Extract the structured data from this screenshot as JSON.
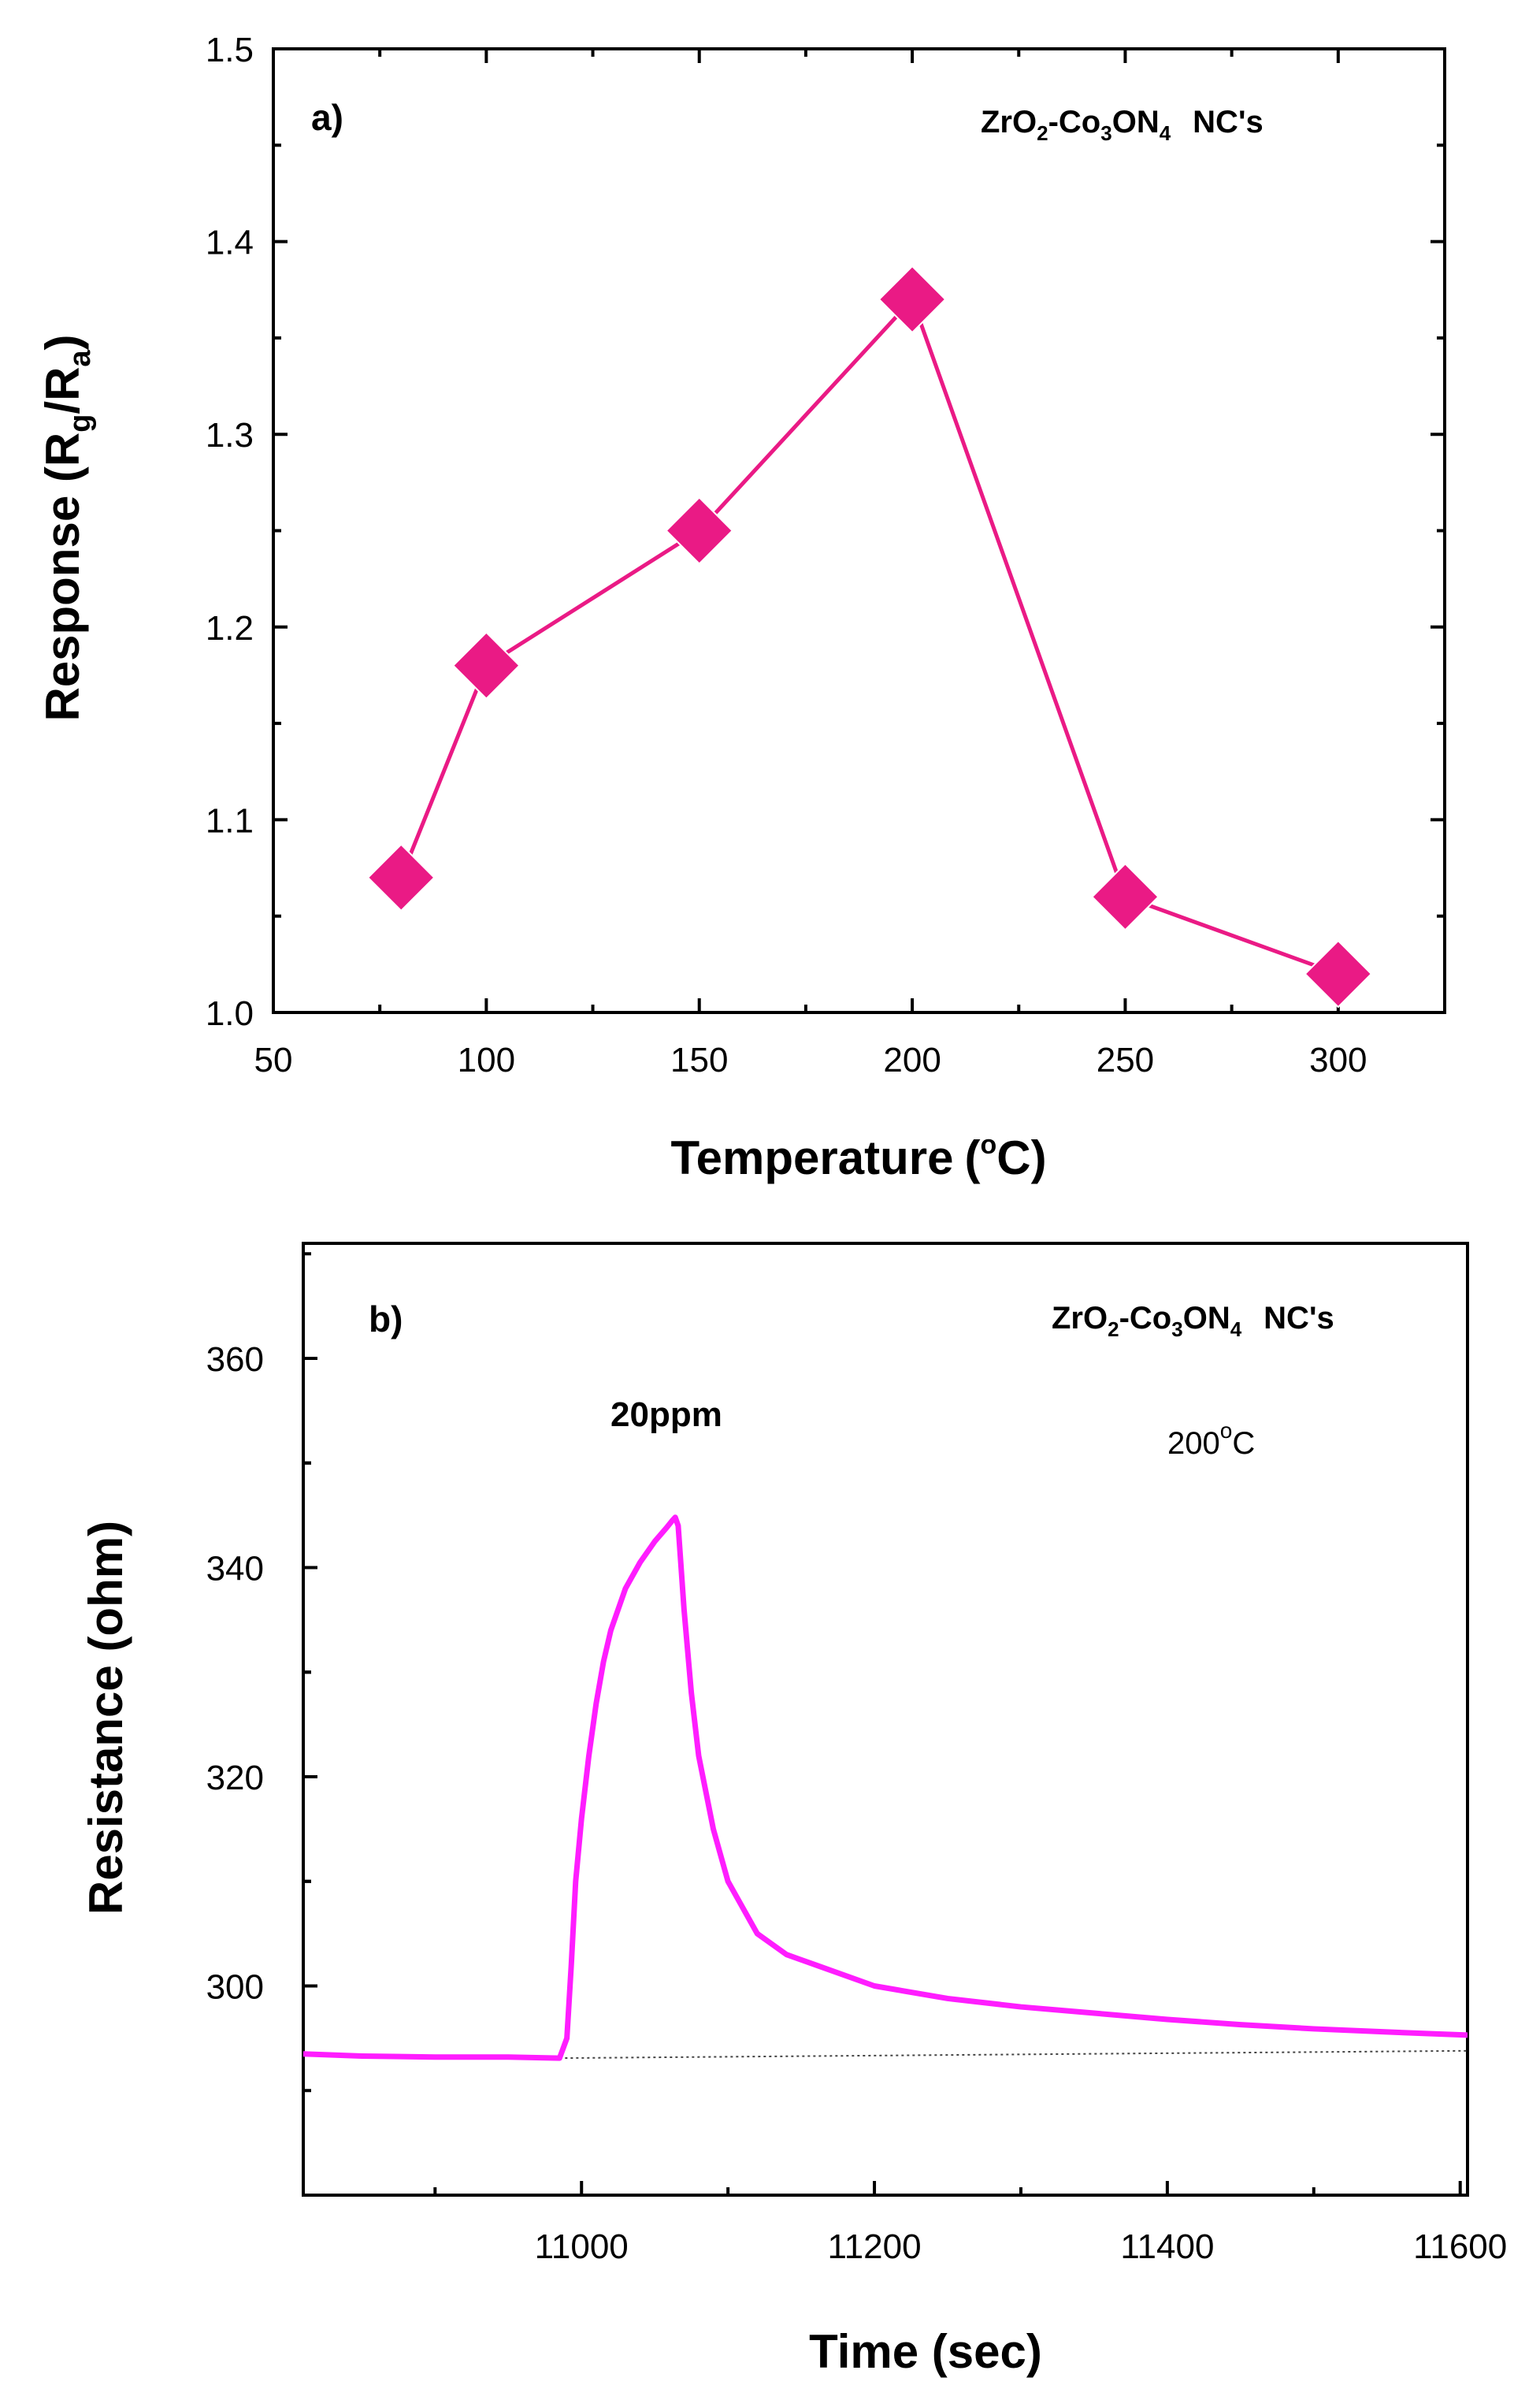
{
  "colors": {
    "series_a": "#ea1a85",
    "series_b": "#ff1dff",
    "baseline": "#444444"
  },
  "chart_data": [
    {
      "type": "line",
      "panel": "a)",
      "title": "",
      "compound": {
        "parts": [
          "ZrO",
          "2",
          "-Co",
          "3",
          "ON",
          "4",
          "NC's"
        ]
      },
      "xlabel": "Temperature",
      "xlabel_unit": {
        "open": "(",
        "degree": "o",
        "unit": "C",
        "close": ")"
      },
      "ylabel": {
        "main": "Response (R",
        "sub1": "g",
        "mid": "/R",
        "sub2": "a",
        "close": ")"
      },
      "xlim": [
        50,
        325
      ],
      "ylim": [
        1.0,
        1.5
      ],
      "xticks": [
        50,
        100,
        150,
        200,
        250,
        300
      ],
      "yticks": [
        1.0,
        1.1,
        1.2,
        1.3,
        1.4,
        1.5
      ],
      "ytick_labels": [
        "1.0",
        "1.1",
        "1.2",
        "1.3",
        "1.4",
        "1.5"
      ],
      "marker": "diamond",
      "series": [
        {
          "name": "ZrO2-Co3ON4 NC's",
          "x": [
            80,
            100,
            150,
            200,
            250,
            300
          ],
          "y": [
            1.07,
            1.18,
            1.25,
            1.37,
            1.06,
            1.02
          ]
        }
      ]
    },
    {
      "type": "line",
      "panel": "b)",
      "title": "",
      "compound": {
        "parts": [
          "ZrO",
          "2",
          "-Co",
          "3",
          "ON",
          "4",
          "NC's"
        ]
      },
      "condition": {
        "value": "200",
        "degree": "o",
        "unit": "C"
      },
      "annotation": "20ppm",
      "xlabel": "Time (sec)",
      "ylabel": "Resistance (ohm)",
      "xlim": [
        10810,
        11605
      ],
      "ylim": [
        280,
        371
      ],
      "xticks": [
        11000,
        11200,
        11400,
        11600
      ],
      "yticks": [
        300,
        320,
        340,
        360
      ],
      "series": [
        {
          "name": "Resistance",
          "x": [
            10810,
            10850,
            10900,
            10950,
            10985,
            10990,
            10993,
            10996,
            11000,
            11005,
            11010,
            11015,
            11020,
            11030,
            11040,
            11050,
            11058,
            11062,
            11064,
            11066,
            11070,
            11075,
            11080,
            11090,
            11100,
            11120,
            11140,
            11160,
            11200,
            11250,
            11300,
            11350,
            11400,
            11450,
            11500,
            11550,
            11605
          ],
          "y": [
            293.5,
            293.3,
            293.2,
            293.2,
            293.1,
            295.0,
            302.0,
            310.0,
            316.0,
            322.0,
            327.0,
            331.0,
            334.0,
            338.0,
            340.5,
            342.5,
            343.8,
            344.5,
            344.8,
            344.0,
            336.0,
            328.0,
            322.0,
            315.0,
            310.0,
            305.0,
            303.0,
            302.0,
            300.0,
            298.8,
            298.0,
            297.4,
            296.8,
            296.3,
            295.9,
            295.6,
            295.3
          ]
        },
        {
          "name": "Baseline",
          "x": [
            10985,
            11605
          ],
          "y": [
            293.1,
            293.8
          ]
        }
      ]
    }
  ]
}
